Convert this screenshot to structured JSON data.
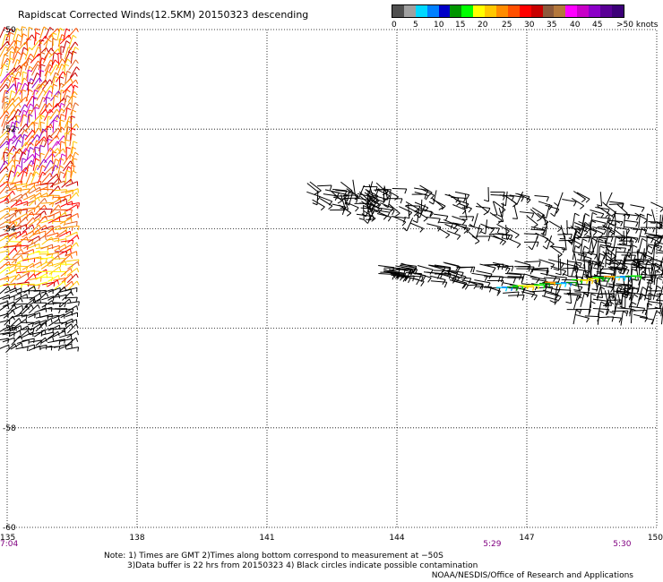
{
  "header": {
    "title": "Rapidscat Corrected Winds(12.5KM) 20150323 descending"
  },
  "legend": {
    "colors": [
      "#505050",
      "#a0a0a0",
      "#00d8ff",
      "#0080ff",
      "#0000c8",
      "#009600",
      "#00ff00",
      "#ffff00",
      "#ffc800",
      "#ff8c00",
      "#ff5000",
      "#ff0000",
      "#c80000",
      "#8c5a3c",
      "#b4783c",
      "#ff00ff",
      "#c800c8",
      "#8c00c8",
      "#5a0096",
      "#3c0078"
    ],
    "labels": [
      "0",
      "5",
      "10",
      "15",
      "20",
      "25",
      "30",
      "35",
      "40",
      "45",
      ">50 knots"
    ]
  },
  "map": {
    "lat_labels": [
      "-50",
      "-52",
      "-54",
      "-56",
      "-58",
      "-60"
    ],
    "lon_labels": [
      "135",
      "138",
      "141",
      "144",
      "147",
      "150"
    ],
    "time_labels": [
      {
        "lon": 135,
        "text": "7:04"
      },
      {
        "lon": 146.2,
        "text": "5:29"
      },
      {
        "lon": 149.2,
        "text": "5:30"
      }
    ]
  },
  "notes": {
    "line1": "Note: 1) Times are GMT 2)Times along bottom correspond to measurement at −50S",
    "line2": "3)Data buffer is 22 hrs from 20150323 4) Black circles indicate possible contamination"
  },
  "credit": "NOAA/NESDIS/Office of Research and Applications"
}
